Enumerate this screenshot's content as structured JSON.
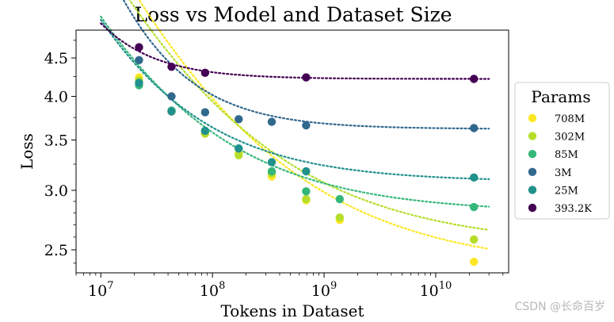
{
  "chart_data": {
    "type": "scatter",
    "title": "Loss vs Model and Dataset Size",
    "xlabel": "Tokens in Dataset",
    "ylabel": "Loss",
    "xscale": "log",
    "yscale": "log",
    "xlim": [
      6000000.0,
      45000000000.0
    ],
    "ylim": [
      2.33,
      4.9
    ],
    "x_ticks": [
      {
        "value": 10000000.0,
        "base": "10",
        "exp": "7"
      },
      {
        "value": 100000000.0,
        "base": "10",
        "exp": "8"
      },
      {
        "value": 1000000000.0,
        "base": "10",
        "exp": "9"
      },
      {
        "value": 10000000000.0,
        "base": "10",
        "exp": "10"
      }
    ],
    "y_ticks": [
      {
        "value": 2.5,
        "label": "2.5"
      },
      {
        "value": 3.0,
        "label": "3.0"
      },
      {
        "value": 3.5,
        "label": "3.5"
      },
      {
        "value": 4.0,
        "label": "4.0"
      },
      {
        "value": 4.5,
        "label": "4.5"
      }
    ],
    "legend": {
      "title": "Params",
      "position": "right, outside"
    },
    "series": [
      {
        "name": "708M",
        "color": "#fde725",
        "x": [
          22000000.0,
          43000000.0,
          86000000.0,
          172000000.0,
          340000000.0,
          690000000.0,
          1380000000.0,
          22000000000.0
        ],
        "y": [
          4.24,
          3.82,
          3.57,
          3.36,
          3.13,
          2.91,
          2.74,
          2.41
        ],
        "fit": {
          "L_inf": 2.35,
          "A": 3100,
          "alpha": 0.41
        }
      },
      {
        "name": "302M",
        "color": "#b5de2b",
        "x": [
          22000000.0,
          43000000.0,
          86000000.0,
          172000000.0,
          340000000.0,
          690000000.0,
          1380000000.0,
          22000000000.0
        ],
        "y": [
          4.2,
          3.82,
          3.57,
          3.34,
          3.16,
          2.92,
          2.76,
          2.58
        ],
        "fit": {
          "L_inf": 2.52,
          "A": 2700,
          "alpha": 0.41
        }
      },
      {
        "name": "85M",
        "color": "#35b779",
        "x": [
          22000000.0,
          43000000.0,
          86000000.0,
          172000000.0,
          340000000.0,
          690000000.0,
          1380000000.0,
          22000000000.0
        ],
        "y": [
          4.14,
          3.83,
          3.6,
          3.41,
          3.18,
          2.99,
          2.92,
          2.85
        ],
        "fit": {
          "L_inf": 2.8,
          "A": 4500,
          "alpha": 0.47
        }
      },
      {
        "name": "3M",
        "color": "#31688e",
        "x": [
          22000000.0,
          43000000.0,
          86000000.0,
          172000000.0,
          340000000.0,
          690000000.0,
          22000000000.0
        ],
        "y": [
          4.47,
          4.0,
          3.81,
          3.73,
          3.7,
          3.66,
          3.63
        ],
        "fit": {
          "L_inf": 3.62,
          "A": 1200000.0,
          "alpha": 0.81
        }
      },
      {
        "name": "25M",
        "color": "#21918c",
        "x": [
          22000000.0,
          43000000.0,
          86000000.0,
          172000000.0,
          340000000.0,
          690000000.0,
          22000000000.0
        ],
        "y": [
          4.17,
          3.82,
          3.6,
          3.41,
          3.27,
          3.18,
          3.12
        ],
        "fit": {
          "L_inf": 3.08,
          "A": 14000,
          "alpha": 0.55
        }
      },
      {
        "name": "393.2K",
        "color": "#440154",
        "x": [
          22000000.0,
          43000000.0,
          86000000.0,
          690000000.0,
          22000000000.0
        ],
        "y": [
          4.65,
          4.38,
          4.3,
          4.24,
          4.22
        ],
        "fit": {
          "L_inf": 4.22,
          "A": 3500000.0,
          "alpha": 0.95
        }
      }
    ]
  },
  "watermark": "CSDN @长命百岁"
}
